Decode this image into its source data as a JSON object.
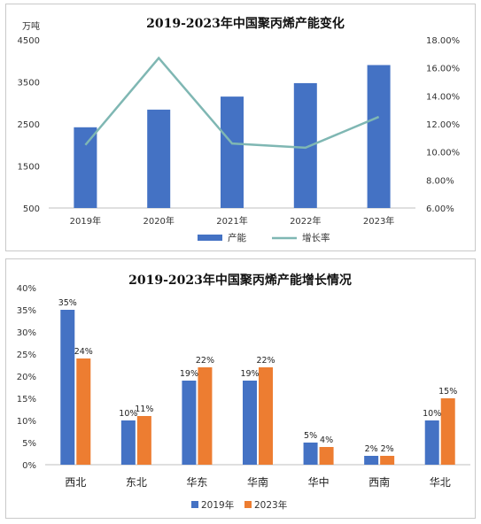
{
  "chart_data": [
    {
      "type": "bar",
      "title": "2019-2023年中国聚丙烯产能变化",
      "ylabel": "万吨",
      "categories": [
        "2019年",
        "2020年",
        "2021年",
        "2022年",
        "2023年"
      ],
      "ylim": [
        500,
        4500
      ],
      "yticks": [
        "4500",
        "3500",
        "2500",
        "1500",
        "500"
      ],
      "y2lim": [
        6,
        18
      ],
      "y2ticks": [
        "18.00%",
        "16.00%",
        "14.00%",
        "12.00%",
        "10.00%",
        "8.00%",
        "6.00%"
      ],
      "series": [
        {
          "name": "产能",
          "type": "bar",
          "axis": "left",
          "color": "#4472c4",
          "values": [
            2420,
            2840,
            3150,
            3470,
            3900
          ]
        },
        {
          "name": "增长率",
          "type": "line",
          "axis": "right",
          "color": "#7fb7b3",
          "values": [
            10.5,
            16.7,
            10.6,
            10.3,
            12.5
          ]
        }
      ],
      "legend": "bottom",
      "grid": false
    },
    {
      "type": "bar",
      "title": "2019-2023年中国聚丙烯产能增长情况",
      "categories": [
        "西北",
        "东北",
        "华东",
        "华南",
        "华中",
        "西南",
        "华北"
      ],
      "ylim": [
        0,
        40
      ],
      "yticks": [
        "40%",
        "35%",
        "30%",
        "25%",
        "20%",
        "15%",
        "10%",
        "5%",
        "0%"
      ],
      "series": [
        {
          "name": "2019年",
          "color": "#4472c4",
          "values": [
            35,
            10,
            19,
            19,
            5,
            2,
            10
          ],
          "labels": [
            "35%",
            "10%",
            "19%",
            "19%",
            "5%",
            "2%",
            "10%"
          ]
        },
        {
          "name": "2023年",
          "color": "#ed7d31",
          "values": [
            24,
            11,
            22,
            22,
            4,
            2,
            15
          ],
          "labels": [
            "24%",
            "11%",
            "22%",
            "22%",
            "4%",
            "2%",
            "15%"
          ]
        }
      ],
      "legend": "bottom",
      "grid": false
    }
  ]
}
